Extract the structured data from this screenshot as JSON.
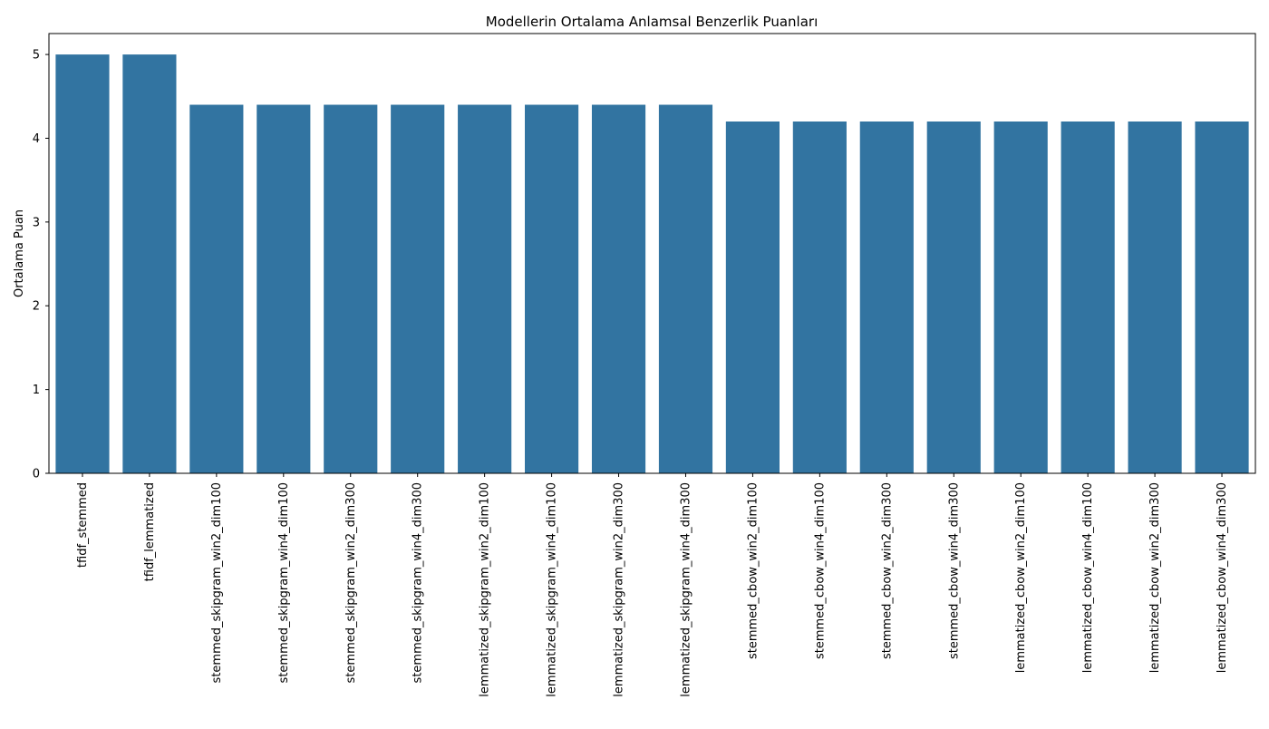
{
  "chart_data": {
    "type": "bar",
    "title": "Modellerin Ortalama Anlamsal Benzerlik Puanları",
    "xlabel": "",
    "ylabel": "Ortalama Puan",
    "ylim": [
      0,
      5.25
    ],
    "yticks": [
      0,
      1,
      2,
      3,
      4,
      5
    ],
    "grid": false,
    "bar_color": "#3274a1",
    "categories": [
      "tfidf_stemmed",
      "tfidf_lemmatized",
      "stemmed_skipgram_win2_dim100",
      "stemmed_skipgram_win4_dim100",
      "stemmed_skipgram_win2_dim300",
      "stemmed_skipgram_win4_dim300",
      "lemmatized_skipgram_win2_dim100",
      "lemmatized_skipgram_win4_dim100",
      "lemmatized_skipgram_win2_dim300",
      "lemmatized_skipgram_win4_dim300",
      "stemmed_cbow_win2_dim100",
      "stemmed_cbow_win4_dim100",
      "stemmed_cbow_win2_dim300",
      "stemmed_cbow_win4_dim300",
      "lemmatized_cbow_win2_dim100",
      "lemmatized_cbow_win4_dim100",
      "lemmatized_cbow_win2_dim300",
      "lemmatized_cbow_win4_dim300"
    ],
    "values": [
      5.0,
      5.0,
      4.4,
      4.4,
      4.4,
      4.4,
      4.4,
      4.4,
      4.4,
      4.4,
      4.2,
      4.2,
      4.2,
      4.2,
      4.2,
      4.2,
      4.2,
      4.2
    ]
  }
}
